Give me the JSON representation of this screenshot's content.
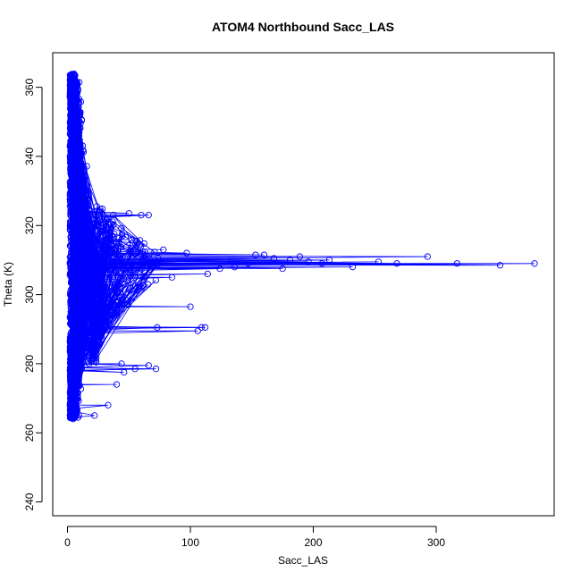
{
  "chart_data": {
    "type": "scatter",
    "title": "ATOM4 Northbound Sacc_LAS",
    "xlabel": "Sacc_LAS",
    "ylabel": "Theta (K)",
    "xlim": [
      -12,
      396
    ],
    "ylim": [
      236,
      370
    ],
    "xticks": [
      "0",
      "100",
      "200",
      "300"
    ],
    "yticks": [
      "240",
      "260",
      "280",
      "300",
      "320",
      "340",
      "360"
    ],
    "grid": false,
    "legend": "none",
    "color": "#0000ff",
    "style": "points connected by lines (open circles)",
    "outliers": [
      {
        "x": 380,
        "y": 309
      },
      {
        "x": 352,
        "y": 308.5
      },
      {
        "x": 317,
        "y": 309
      },
      {
        "x": 293,
        "y": 311
      },
      {
        "x": 268,
        "y": 309
      },
      {
        "x": 253,
        "y": 309.5
      },
      {
        "x": 232,
        "y": 308
      },
      {
        "x": 213,
        "y": 310
      },
      {
        "x": 207,
        "y": 309
      },
      {
        "x": 196,
        "y": 309.5
      },
      {
        "x": 189,
        "y": 311
      },
      {
        "x": 181,
        "y": 310
      },
      {
        "x": 175,
        "y": 307.5
      },
      {
        "x": 168,
        "y": 310.5
      },
      {
        "x": 160,
        "y": 311.5
      },
      {
        "x": 153,
        "y": 311.5
      },
      {
        "x": 147,
        "y": 309
      },
      {
        "x": 136,
        "y": 308
      },
      {
        "x": 124,
        "y": 307.5
      },
      {
        "x": 114,
        "y": 306
      },
      {
        "x": 112,
        "y": 290.5
      },
      {
        "x": 109,
        "y": 290.5
      },
      {
        "x": 106,
        "y": 289.5
      },
      {
        "x": 100,
        "y": 296.5
      },
      {
        "x": 97,
        "y": 312
      },
      {
        "x": 85,
        "y": 305
      },
      {
        "x": 78,
        "y": 313
      },
      {
        "x": 73,
        "y": 290.5
      },
      {
        "x": 72,
        "y": 278.5
      },
      {
        "x": 66,
        "y": 323
      },
      {
        "x": 66,
        "y": 279.5
      },
      {
        "x": 60,
        "y": 323
      },
      {
        "x": 55,
        "y": 278.5
      },
      {
        "x": 50,
        "y": 323.5
      },
      {
        "x": 46,
        "y": 277.5
      },
      {
        "x": 44,
        "y": 280
      },
      {
        "x": 40,
        "y": 274
      },
      {
        "x": 33,
        "y": 268
      },
      {
        "x": 22,
        "y": 265
      }
    ]
  }
}
